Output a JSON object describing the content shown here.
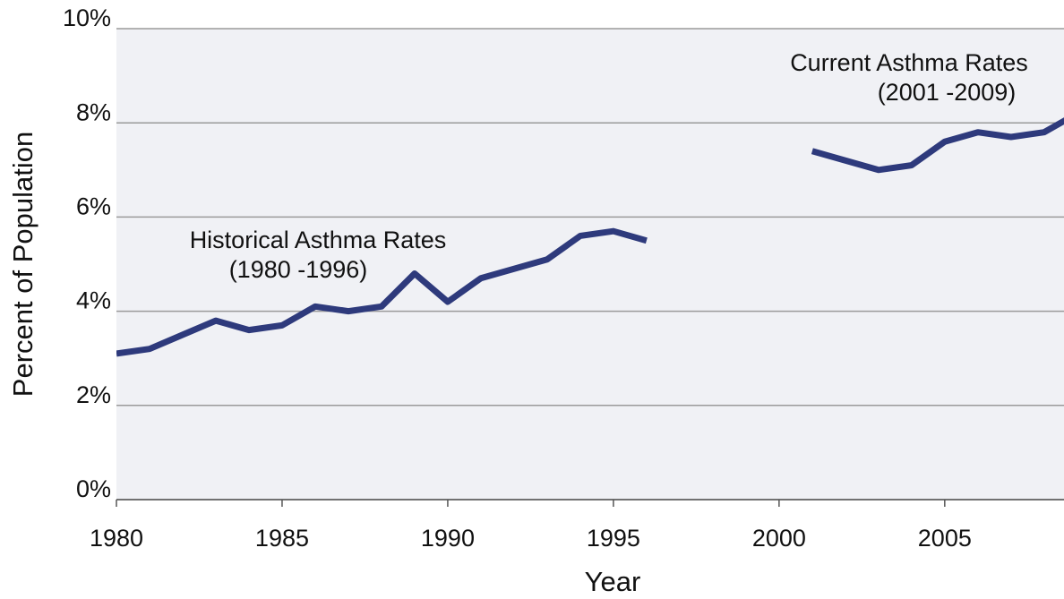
{
  "chart_data": {
    "type": "line",
    "xlabel": "Year",
    "ylabel": "Percent of Population",
    "annotations": [
      "Historical Asthma Rates",
      "(1980 -1996)",
      "Current Asthma Rates",
      "(2001 -2009)"
    ],
    "x": [
      1980,
      1981,
      1982,
      1983,
      1984,
      1985,
      1986,
      1987,
      1988,
      1989,
      1990,
      1991,
      1992,
      1993,
      1994,
      1995,
      1996,
      1997,
      1998,
      1999,
      2000,
      2001,
      2002,
      2003,
      2004,
      2005,
      2006,
      2007,
      2008,
      2009
    ],
    "values": [
      3.1,
      3.2,
      3.5,
      3.8,
      3.6,
      3.7,
      4.1,
      4.0,
      4.1,
      4.8,
      4.2,
      4.7,
      4.9,
      5.1,
      5.6,
      5.7,
      5.5,
      null,
      null,
      null,
      null,
      7.4,
      7.2,
      7.0,
      7.1,
      7.6,
      7.8,
      7.7,
      7.8,
      8.2
    ],
    "color": "#2e3a7c",
    "xlim": [
      1980,
      2008.6
    ],
    "xticks": [
      1980,
      1985,
      1990,
      1995,
      2000,
      2005
    ],
    "ylim": [
      0,
      10
    ],
    "yticks": [
      {
        "value": 0,
        "label": "0%"
      },
      {
        "value": 2,
        "label": "2%"
      },
      {
        "value": 4,
        "label": "4%"
      },
      {
        "value": 6,
        "label": "6%"
      },
      {
        "value": 8,
        "label": "8%"
      },
      {
        "value": 10,
        "label": "10%"
      }
    ],
    "grid": true
  }
}
